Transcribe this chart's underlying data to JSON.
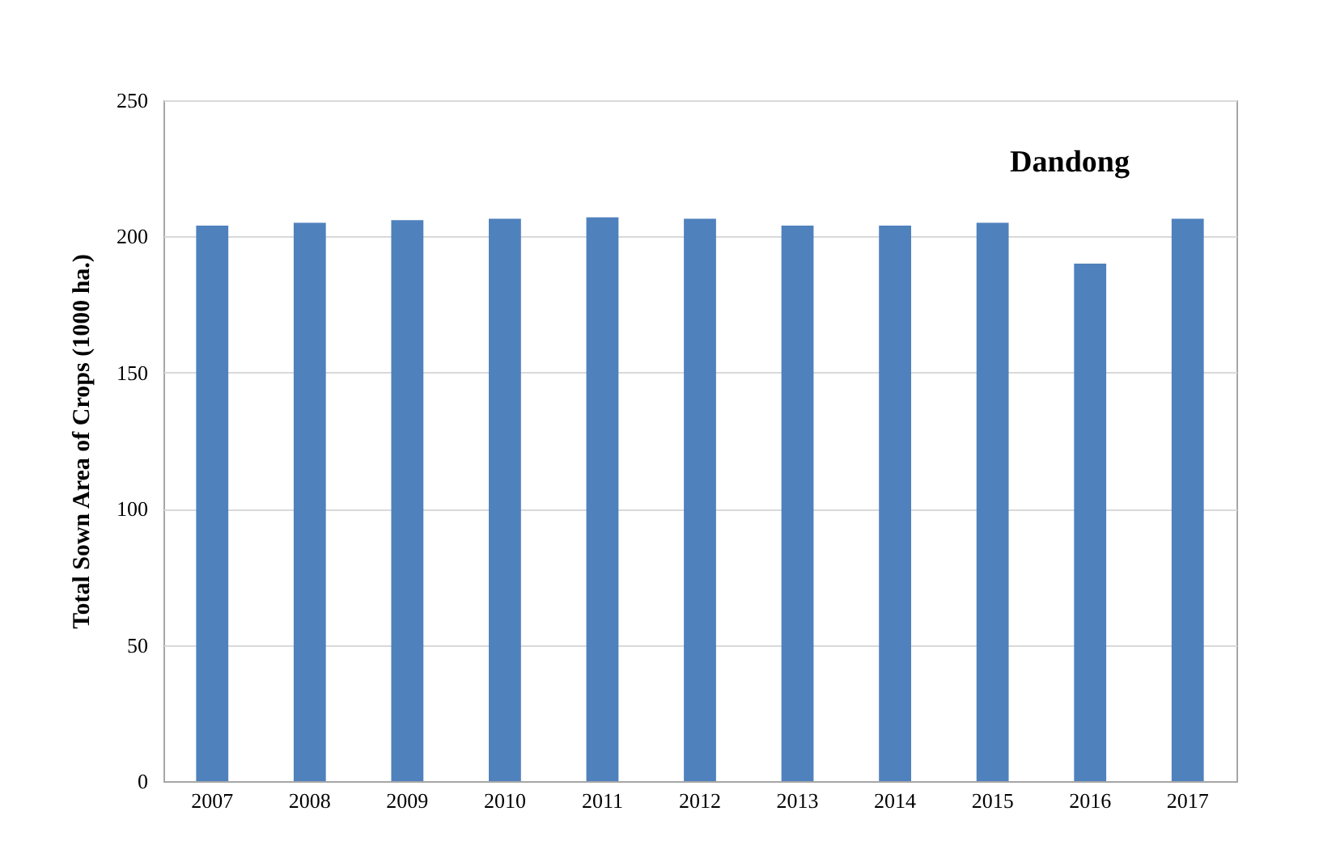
{
  "chart_data": {
    "type": "bar",
    "title": "Dandong",
    "ylabel": "Total Sown Area of Crops (1000 ha.)",
    "categories": [
      "2007",
      "2008",
      "2009",
      "2010",
      "2011",
      "2012",
      "2013",
      "2014",
      "2015",
      "2016",
      "2017"
    ],
    "values": [
      204,
      205,
      206,
      206.5,
      207,
      206.5,
      204,
      204,
      205,
      190,
      206.5
    ],
    "color": "#4f81bd",
    "ylim": [
      0,
      250
    ],
    "yticks": [
      0,
      50,
      100,
      150,
      200,
      250
    ],
    "grid": "y"
  }
}
